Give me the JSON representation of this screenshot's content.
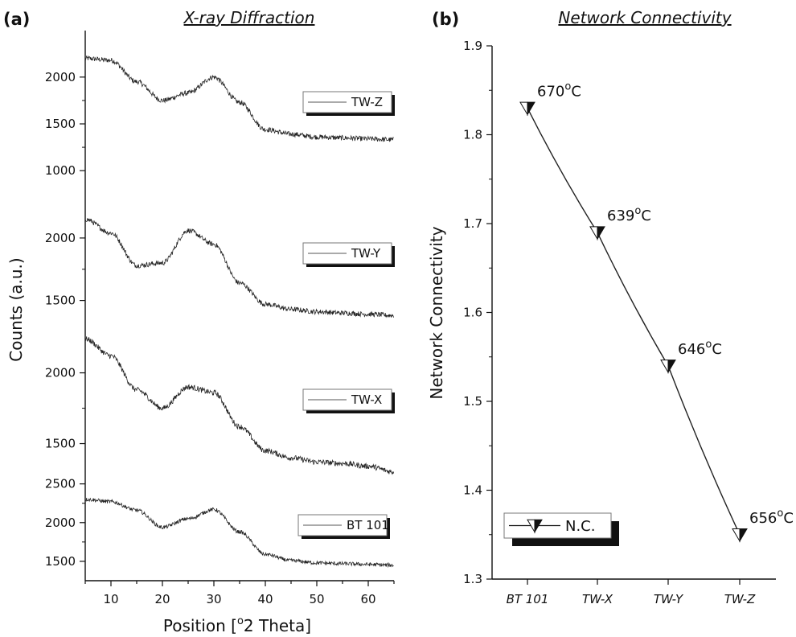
{
  "panel_a": {
    "letter": "(a)",
    "title": "X-ray Diffraction",
    "xlabel_pre": "Position [",
    "xlabel_sup": "o",
    "xlabel_post": "2 Theta]",
    "ylabel": "Counts (a.u.)"
  },
  "panel_b": {
    "letter": "(b)",
    "title": "Network Connectivity",
    "ylabel": "Network Connectivity",
    "legend_label": "N.C.",
    "degree_symbol": "o",
    "temp_unit": "C"
  },
  "colors": {
    "line": "#222222",
    "axis": "#111111",
    "marker_fill": "#111111"
  },
  "chart_data": [
    {
      "type": "line",
      "title": "X-ray Diffraction",
      "xlabel": "Position [°2 Theta]",
      "ylabel": "Counts (a.u.)",
      "xlim": [
        5,
        65
      ],
      "xticks": [
        10,
        20,
        30,
        40,
        50,
        60
      ],
      "stacked_offset_panels": true,
      "series": [
        {
          "name": "TW-Z",
          "yticks": [
            "2000",
            "1500",
            "1000"
          ],
          "ytick_values": [
            2000,
            1500,
            1000
          ],
          "ylim": [
            950,
            2480
          ],
          "x": [
            5,
            10,
            15,
            20,
            25,
            30,
            35,
            40,
            45,
            50,
            55,
            60,
            65
          ],
          "values": [
            2200,
            2180,
            1950,
            1750,
            1830,
            2000,
            1730,
            1440,
            1390,
            1360,
            1350,
            1340,
            1330
          ]
        },
        {
          "name": "TW-Y",
          "yticks": [
            "2000",
            "1500"
          ],
          "ytick_values": [
            2000,
            1500
          ],
          "ylim": [
            1330,
            2450
          ],
          "x": [
            5,
            10,
            15,
            20,
            25,
            30,
            35,
            40,
            45,
            50,
            55,
            60,
            65
          ],
          "values": [
            2150,
            2040,
            1780,
            1800,
            2060,
            1950,
            1640,
            1470,
            1430,
            1410,
            1400,
            1390,
            1380
          ]
        },
        {
          "name": "TW-X",
          "yticks": [
            "2000",
            "1500"
          ],
          "ytick_values": [
            2000,
            1500
          ],
          "ylim": [
            1270,
            2350
          ],
          "x": [
            5,
            10,
            15,
            20,
            25,
            30,
            35,
            40,
            45,
            50,
            55,
            60,
            65
          ],
          "values": [
            2240,
            2120,
            1880,
            1750,
            1900,
            1860,
            1620,
            1450,
            1400,
            1370,
            1360,
            1340,
            1300
          ]
        },
        {
          "name": "BT 101",
          "yticks": [
            "2500",
            "2000",
            "1500"
          ],
          "ytick_values": [
            2500,
            2000,
            1500
          ],
          "ylim": [
            1250,
            2600
          ],
          "x": [
            5,
            10,
            15,
            20,
            25,
            30,
            35,
            40,
            45,
            50,
            55,
            60,
            65
          ],
          "values": [
            2300,
            2270,
            2160,
            1940,
            2050,
            2170,
            1880,
            1590,
            1510,
            1480,
            1470,
            1460,
            1450
          ]
        }
      ]
    },
    {
      "type": "line",
      "title": "Network Connectivity",
      "xlabel": "",
      "ylabel": "Network Connectivity",
      "categories": [
        "BT 101",
        "TW-X",
        "TW-Y",
        "TW-Z"
      ],
      "series": [
        {
          "name": "N.C.",
          "values": [
            1.83,
            1.69,
            1.54,
            1.35
          ]
        }
      ],
      "point_labels": [
        "670",
        "639",
        "646",
        "656"
      ],
      "ylim": [
        1.3,
        1.9
      ],
      "yticks": [
        "1.3",
        "1.4",
        "1.5",
        "1.6",
        "1.7",
        "1.8",
        "1.9"
      ],
      "ytick_values": [
        1.3,
        1.4,
        1.5,
        1.6,
        1.7,
        1.8,
        1.9
      ],
      "legend_position": "bottom-left"
    }
  ]
}
